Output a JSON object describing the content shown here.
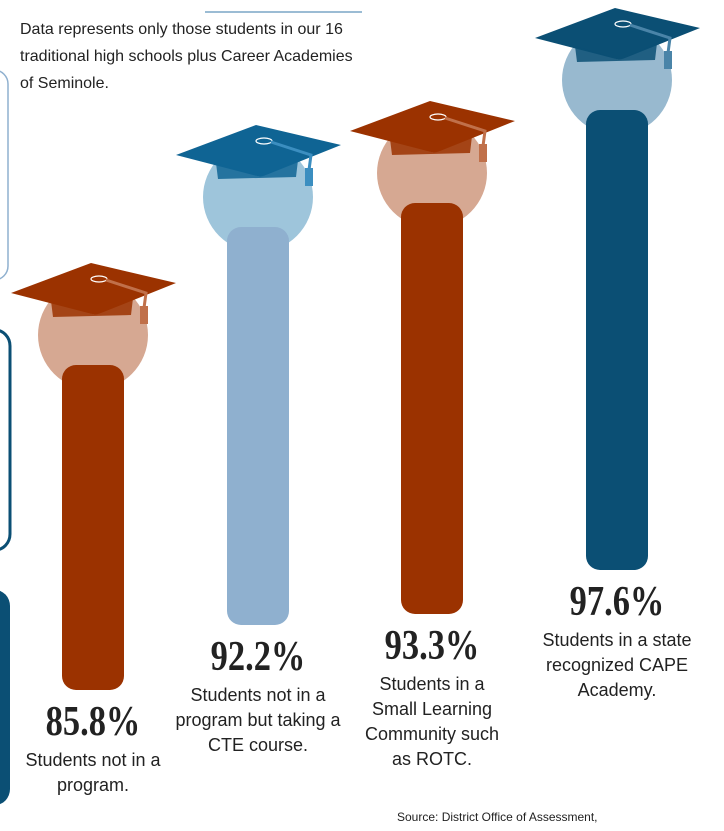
{
  "chart_data": {
    "type": "bar",
    "subtitle": "Data represents only those students in our 16 traditional high schools plus Career Academies of Seminole.",
    "categories": [
      "Students not in a program.",
      "Students not in a program but taking a CTE course.",
      "Students in a Small Learning Community such as ROTC.",
      "Students in a state recognized CAPE Academy."
    ],
    "values": [
      85.8,
      92.2,
      93.3,
      97.6
    ],
    "value_labels": [
      "85.8%",
      "92.2%",
      "93.3%",
      "97.6%"
    ],
    "colors": [
      "#9b3200",
      "#8fb0cf",
      "#9b3200",
      "#0b4f74"
    ],
    "source": "Source: District Office of Assessment,"
  }
}
